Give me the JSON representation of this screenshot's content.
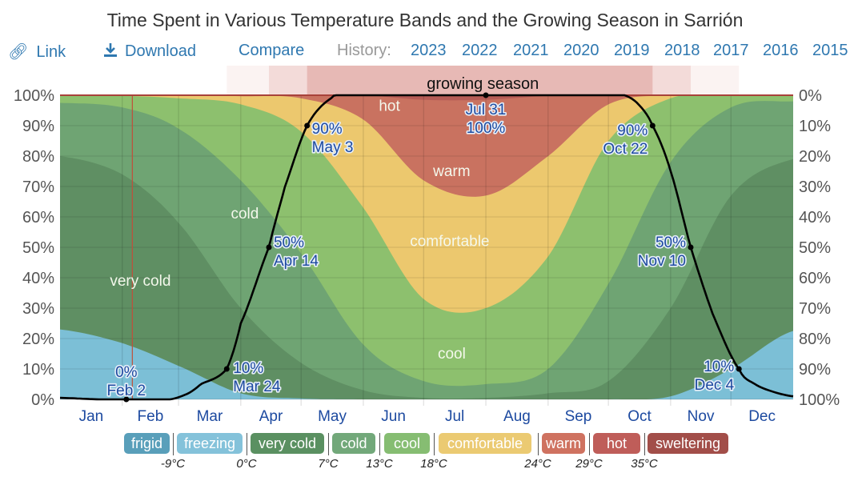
{
  "title": "Time Spent in Various Temperature Bands and the Growing Season in Sarrión",
  "toolbar": {
    "link_label": "Link",
    "link_icon": "link-icon",
    "download_label": "Download",
    "download_icon": "download-icon",
    "compare_label": "Compare",
    "history_label": "History:",
    "history_years": [
      "2023",
      "2022",
      "2021",
      "2020",
      "2019",
      "2018",
      "2017",
      "2016",
      "2015"
    ]
  },
  "legend": {
    "bands": [
      {
        "label": "frigid",
        "color": "#3d8fae"
      },
      {
        "label": "freezing",
        "color": "#6fb8d4"
      },
      {
        "label": "very cold",
        "color": "#3e7d46"
      },
      {
        "label": "cold",
        "color": "#5a9a63"
      },
      {
        "label": "cool",
        "color": "#72b25a"
      },
      {
        "label": "comfortable",
        "color": "#e8c15a"
      },
      {
        "label": "warm",
        "color": "#c75a45"
      },
      {
        "label": "hot",
        "color": "#b5413d"
      },
      {
        "label": "sweltering",
        "color": "#92302a"
      }
    ],
    "thresholds": [
      "-9°C",
      "0°C",
      "7°C",
      "13°C",
      "18°C",
      "24°C",
      "29°C",
      "35°C"
    ]
  },
  "chart_data": {
    "type": "area",
    "title": "Time Spent in Various Temperature Bands and the Growing Season in Sarrión",
    "x_unit": "day of year",
    "xlim": [
      0,
      365
    ],
    "categories": [
      "Jan",
      "Feb",
      "Mar",
      "Apr",
      "May",
      "Jun",
      "Jul",
      "Aug",
      "Sep",
      "Oct",
      "Nov",
      "Dec"
    ],
    "left_axis": {
      "ylim": [
        0,
        100
      ],
      "ticks": [
        "0%",
        "10%",
        "20%",
        "30%",
        "40%",
        "50%",
        "60%",
        "70%",
        "80%",
        "90%",
        "100%"
      ]
    },
    "right_axis": {
      "ylim": [
        100,
        0
      ],
      "ticks": [
        "0%",
        "10%",
        "20%",
        "30%",
        "40%",
        "50%",
        "60%",
        "70%",
        "80%",
        "90%",
        "100%"
      ],
      "inverted": true
    },
    "grid": true,
    "band_colors": {
      "freezing": "#7cbfd6",
      "very_cold": "#5f8f63",
      "cold": "#6fa473",
      "cool": "#8dc06e",
      "comfortable": "#ecc86e",
      "warm": "#c97260",
      "hot": "#b65c56",
      "sweltering": "#9b3b34"
    },
    "x": [
      0,
      31,
      59,
      90,
      120,
      151,
      181,
      212,
      243,
      273,
      304,
      334,
      365
    ],
    "cumulative_top": {
      "freezing": [
        23,
        18.5,
        11,
        2,
        0.3,
        0,
        0,
        0,
        0,
        0,
        1,
        10,
        22.5
      ],
      "very_cold": [
        80,
        74,
        58,
        30,
        12,
        3,
        0.5,
        0.5,
        2,
        6,
        30,
        67,
        79
      ],
      "cold": [
        97.5,
        96,
        89,
        72,
        48,
        18,
        6,
        5,
        10,
        38,
        78,
        96,
        98
      ],
      "cool": [
        100,
        99.8,
        99,
        97,
        88,
        63,
        33,
        30,
        47,
        85,
        99,
        100,
        100
      ],
      "comfortable": [
        100,
        100,
        100,
        99.7,
        99,
        92,
        72,
        67,
        80,
        97,
        100,
        100,
        100
      ],
      "warm": [
        100,
        100,
        100,
        100,
        100,
        100,
        98.5,
        98.5,
        99.8,
        100,
        100,
        100,
        100
      ],
      "hot": [
        100,
        100,
        100,
        100,
        100,
        100,
        100,
        100,
        100,
        100,
        100,
        100,
        100
      ]
    },
    "band_labels": [
      {
        "text": "very cold",
        "day": 40,
        "pct": 39
      },
      {
        "text": "cold",
        "day": 92,
        "pct": 61
      },
      {
        "text": "cool",
        "day": 195,
        "pct": 15
      },
      {
        "text": "comfortable",
        "day": 194,
        "pct": 52
      },
      {
        "text": "warm",
        "day": 195,
        "pct": 75
      },
      {
        "text": "hot",
        "day": 164,
        "pct": 96.5
      }
    ],
    "growing_season": {
      "label": "growing season",
      "x": [
        0,
        20,
        33,
        55,
        64,
        70,
        83,
        90,
        104,
        112,
        123,
        135,
        140,
        212,
        281,
        288,
        295,
        304,
        314,
        325,
        338,
        346,
        355,
        365
      ],
      "values": [
        0.5,
        0,
        0,
        0,
        2,
        5,
        10,
        25,
        50,
        70,
        90,
        99,
        100,
        100,
        100,
        97,
        90,
        75,
        50,
        28,
        10,
        5,
        2.5,
        1
      ],
      "annotations": [
        {
          "date": "Feb 2",
          "pct": "0%",
          "day": 33,
          "value": 0
        },
        {
          "date": "Mar 24",
          "pct": "10%",
          "day": 83,
          "value": 10
        },
        {
          "date": "Apr 14",
          "pct": "50%",
          "day": 104,
          "value": 50
        },
        {
          "date": "May 3",
          "pct": "90%",
          "day": 123,
          "value": 90
        },
        {
          "date": "Jul 31",
          "pct": "100%",
          "day": 212,
          "value": 100
        },
        {
          "date": "Oct 22",
          "pct": "90%",
          "day": 295,
          "value": 90
        },
        {
          "date": "Nov 10",
          "pct": "50%",
          "day": 314,
          "value": 50
        },
        {
          "date": "Dec 4",
          "pct": "10%",
          "day": 338,
          "value": 10
        }
      ],
      "season_bands": [
        {
          "start_day": 83,
          "end_day": 338,
          "opacity": 0.15
        },
        {
          "start_day": 104,
          "end_day": 314,
          "opacity": 0.3
        },
        {
          "start_day": 123,
          "end_day": 295,
          "opacity": 0.5
        }
      ]
    },
    "today_marker_day": 36
  }
}
